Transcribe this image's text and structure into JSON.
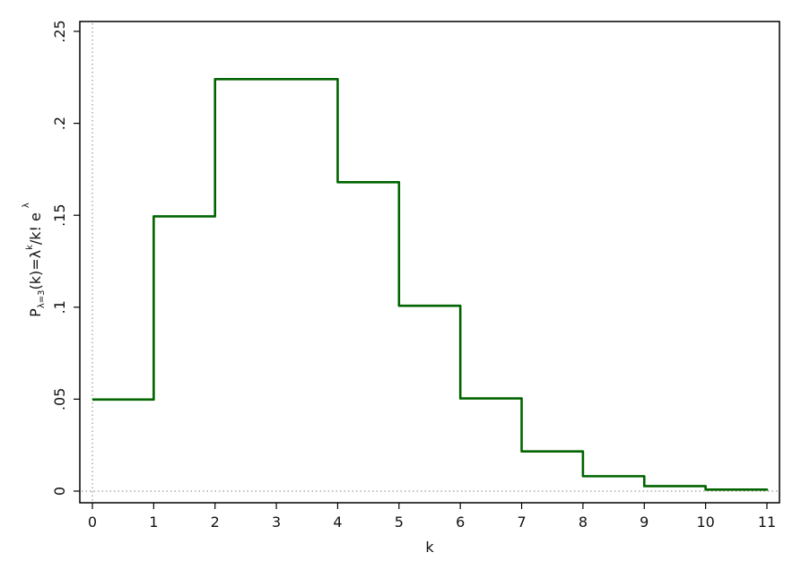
{
  "chart_data": {
    "type": "line",
    "step": true,
    "xlabel": "k",
    "ylabel": {
      "p": "P",
      "sub": "λ=3",
      "middle": "(k)=λ",
      "sup_k": "k",
      "slash": "/k! e",
      "sup_lambda": "λ"
    },
    "xlim": [
      0,
      11
    ],
    "ylim": [
      0,
      0.25
    ],
    "xticks": [
      "0",
      "1",
      "2",
      "3",
      "4",
      "5",
      "6",
      "7",
      "8",
      "9",
      "10",
      "11"
    ],
    "yticks": [
      {
        "value": 0,
        "label": "0"
      },
      {
        "value": 0.05,
        "label": ".05"
      },
      {
        "value": 0.1,
        "label": ".1"
      },
      {
        "value": 0.15,
        "label": ".15"
      },
      {
        "value": 0.2,
        "label": ".2"
      },
      {
        "value": 0.25,
        "label": ".25"
      }
    ],
    "series": [
      {
        "color": "#006400",
        "x": [
          0,
          1,
          2,
          3,
          4,
          5,
          6,
          7,
          8,
          9,
          10,
          11
        ],
        "values": [
          0.0498,
          0.1494,
          0.224,
          0.224,
          0.168,
          0.1008,
          0.0504,
          0.0216,
          0.0081,
          0.0027,
          0.0008,
          0.0002
        ]
      }
    ],
    "reference_lines": {
      "x": 0,
      "y": 0,
      "style": "dotted"
    },
    "grid": false,
    "legend": "none"
  }
}
